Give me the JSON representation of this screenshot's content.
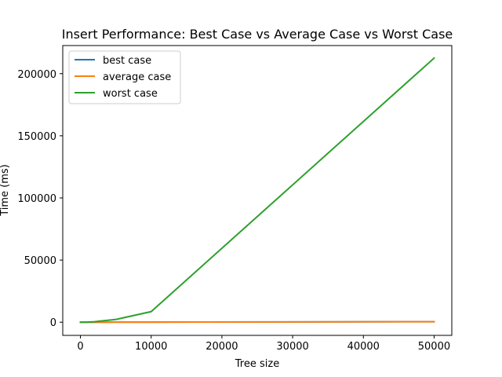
{
  "chart_data": {
    "type": "line",
    "title": "Insert Performance: Best Case vs Average Case vs Worst Case",
    "xlabel": "Tree size",
    "ylabel": "Time (ms)",
    "xlim": [
      -2500,
      52500
    ],
    "ylim": [
      -10600,
      222600
    ],
    "x_ticks": [
      0,
      10000,
      20000,
      30000,
      40000,
      50000
    ],
    "x_tick_labels": [
      "0",
      "10000",
      "20000",
      "30000",
      "40000",
      "50000"
    ],
    "y_ticks": [
      0,
      50000,
      100000,
      150000,
      200000
    ],
    "y_tick_labels": [
      "0",
      "50000",
      "100000",
      "150000",
      "200000"
    ],
    "grid": false,
    "legend_position": "top-left",
    "series": [
      {
        "name": "best case",
        "color": "#1f77b4",
        "x": [
          10,
          100,
          1000,
          2000,
          5000,
          10000,
          50000
        ],
        "y": [
          0,
          1,
          5,
          10,
          30,
          60,
          400
        ]
      },
      {
        "name": "average case",
        "color": "#ff7f0e",
        "x": [
          10,
          100,
          1000,
          2000,
          5000,
          10000,
          50000
        ],
        "y": [
          0,
          1,
          5,
          10,
          30,
          60,
          400
        ]
      },
      {
        "name": "worst case",
        "color": "#2ca02c",
        "x": [
          10,
          100,
          1000,
          2000,
          5000,
          10000,
          50000
        ],
        "y": [
          0,
          5,
          100,
          400,
          2200,
          8500,
          212500
        ]
      }
    ]
  }
}
